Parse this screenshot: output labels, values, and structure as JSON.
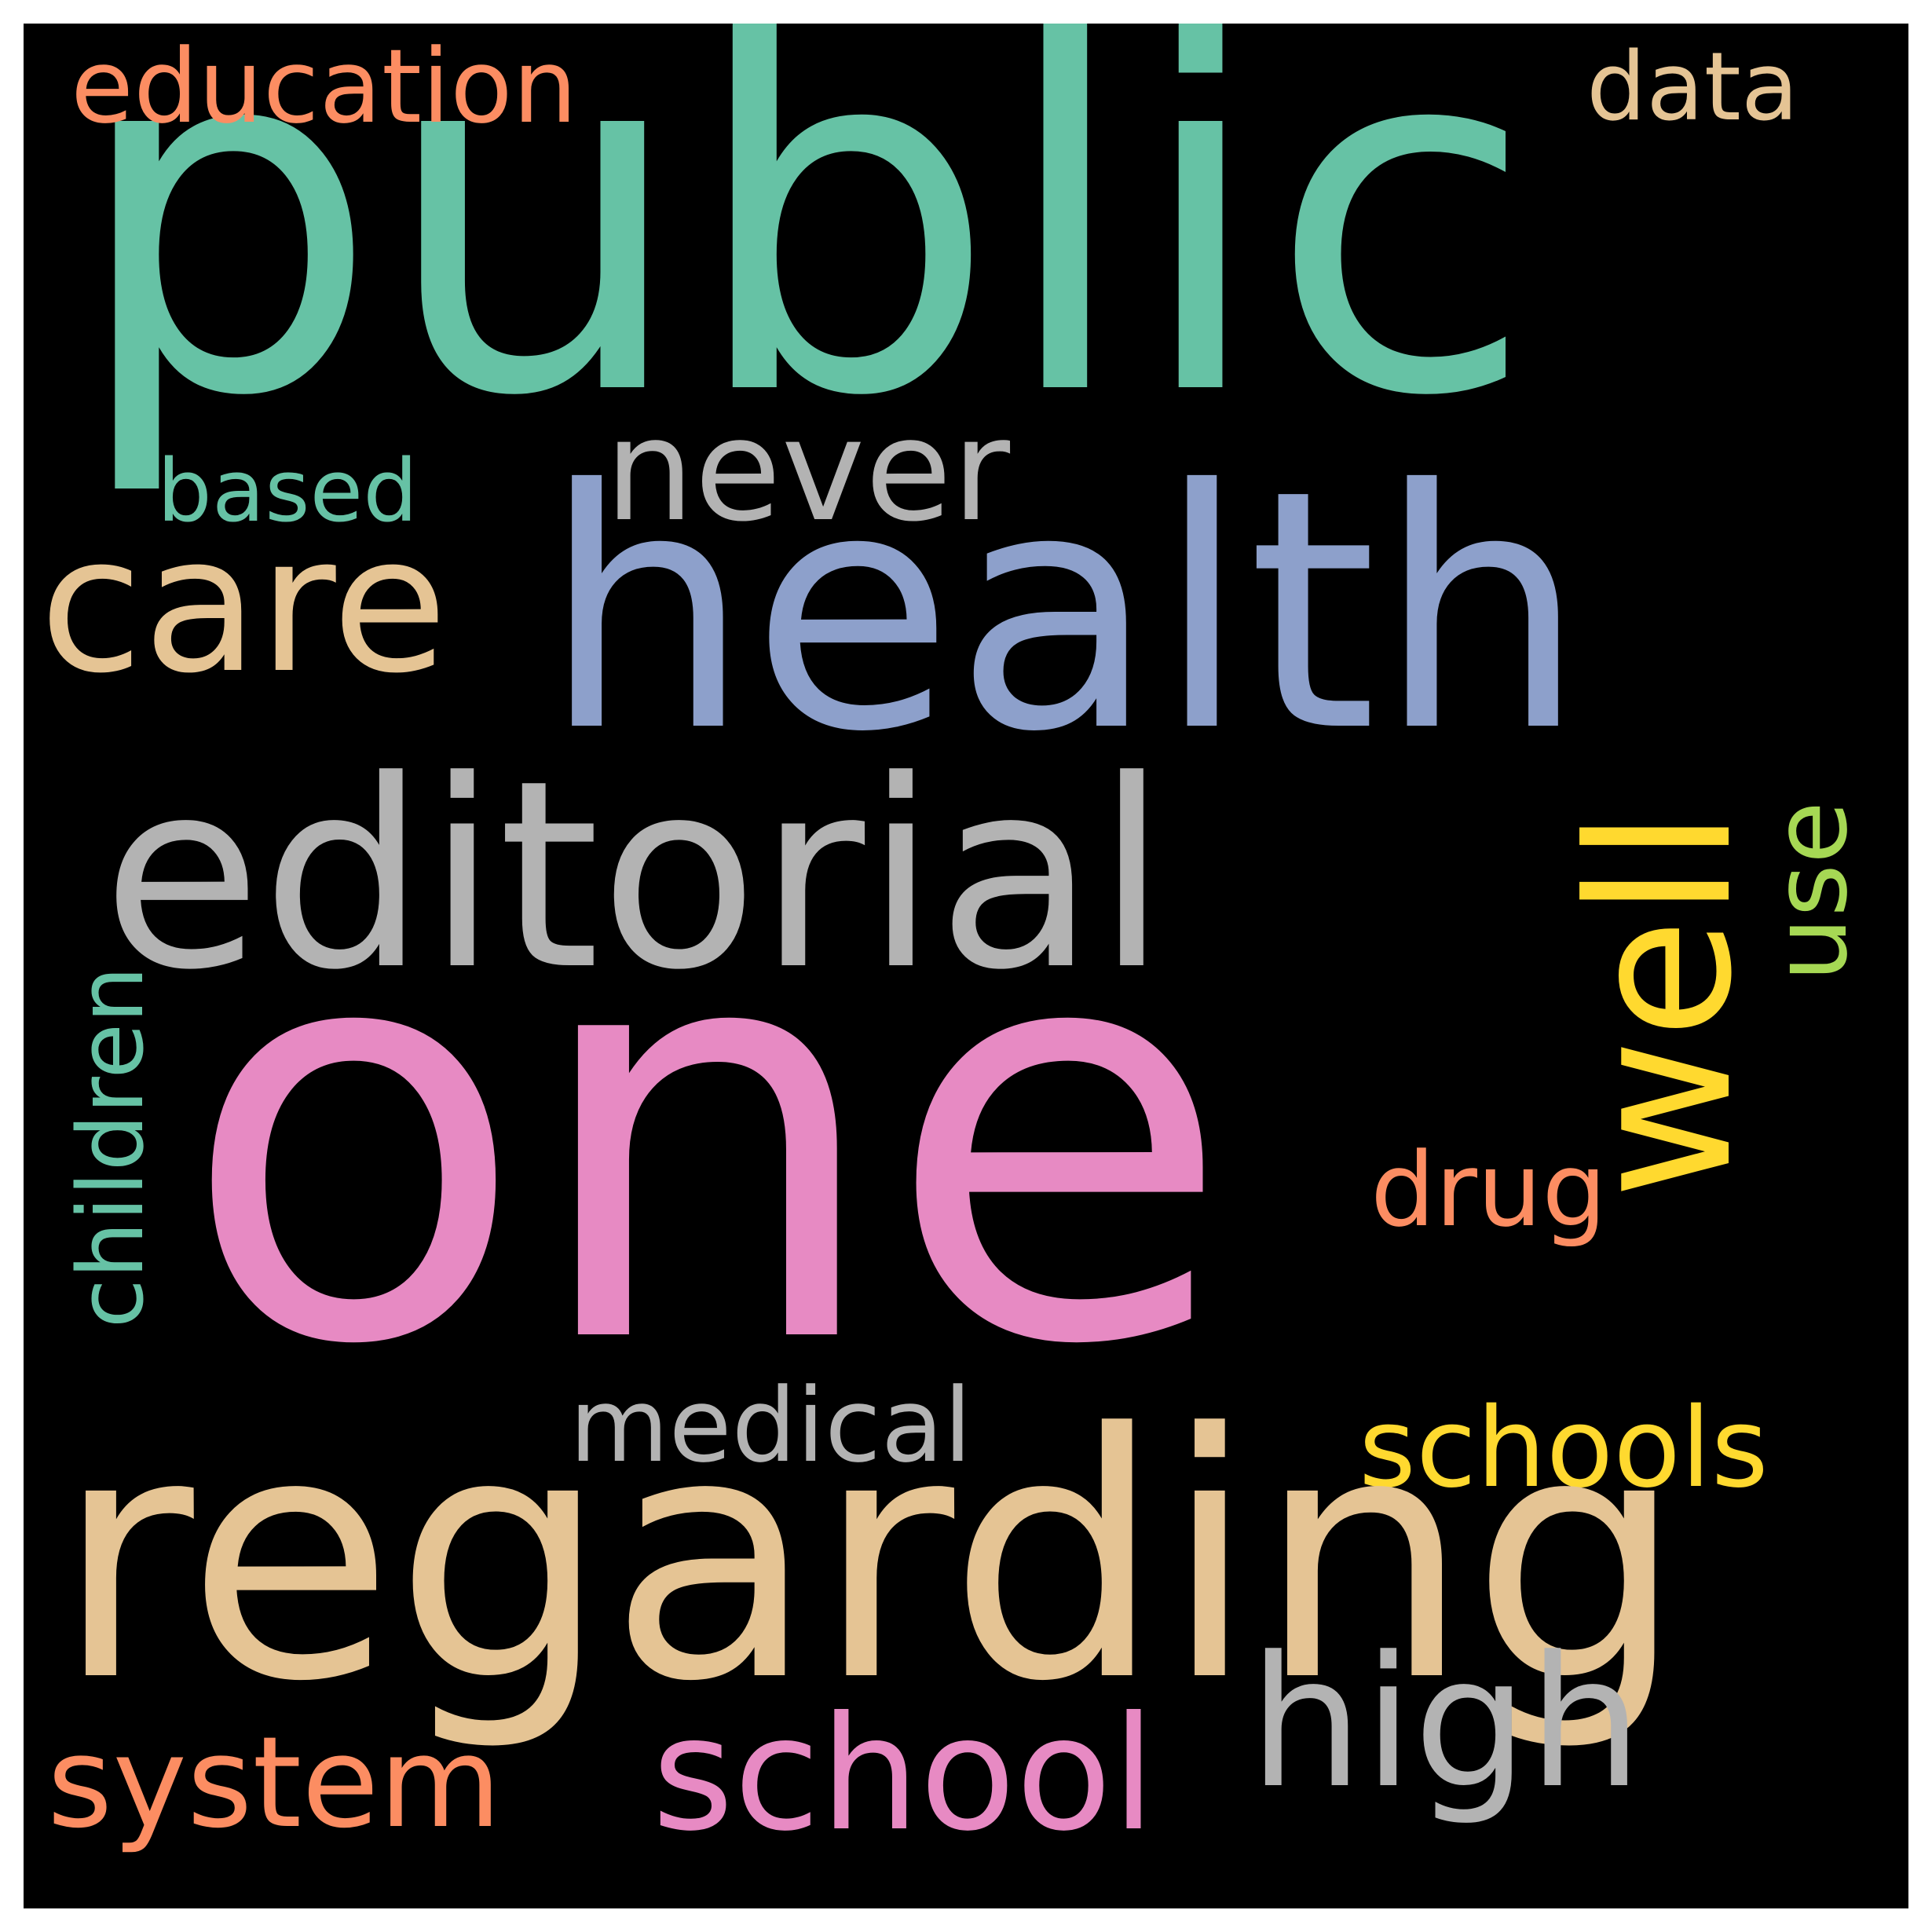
{
  "words": {
    "public": {
      "text": "public",
      "color": "#66c2a5"
    },
    "one": {
      "text": "one",
      "color": "#e78ac3"
    },
    "health": {
      "text": "health",
      "color": "#8da0cb"
    },
    "editorial": {
      "text": "editorial",
      "color": "#b3b3b3"
    },
    "regarding": {
      "text": "regarding",
      "color": "#e5c494"
    },
    "well": {
      "text": "well",
      "color": "#ffd92f"
    },
    "care": {
      "text": "care",
      "color": "#e5c494"
    },
    "never": {
      "text": "never",
      "color": "#b3b3b3"
    },
    "education": {
      "text": "education",
      "color": "#fc8d62"
    },
    "data": {
      "text": "data",
      "color": "#e5c494"
    },
    "based": {
      "text": "based",
      "color": "#66c2a5"
    },
    "use": {
      "text": "use",
      "color": "#a6d854"
    },
    "drug": {
      "text": "drug",
      "color": "#fc8d62"
    },
    "children": {
      "text": "children",
      "color": "#66c2a5"
    },
    "medical": {
      "text": "medical",
      "color": "#b3b3b3"
    },
    "schools": {
      "text": "schools",
      "color": "#ffd92f"
    },
    "school": {
      "text": "school",
      "color": "#e78ac3"
    },
    "high": {
      "text": "high",
      "color": "#b3b3b3"
    },
    "system": {
      "text": "system",
      "color": "#fc8d62"
    }
  }
}
